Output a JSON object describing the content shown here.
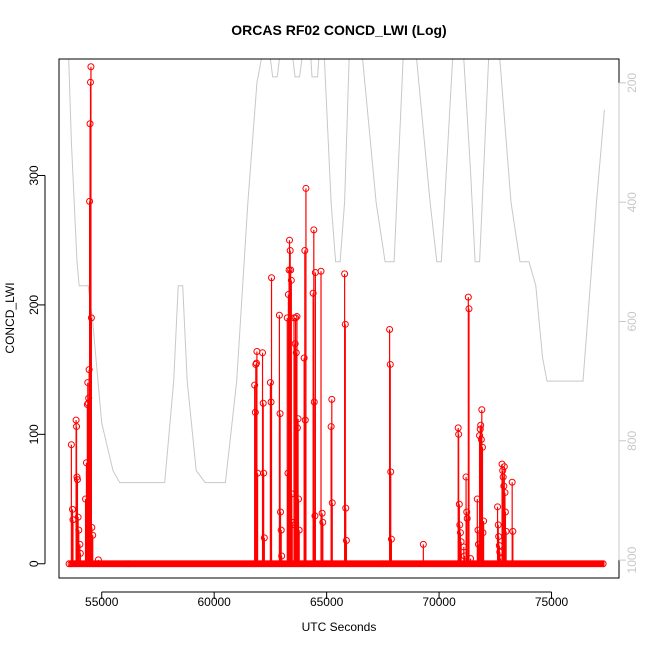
{
  "chart_data": {
    "type": "line",
    "title": "ORCAS RF02 CONCD_LWI (Log)",
    "xlabel": "UTC Seconds",
    "ylabel": "CONCD_LWI",
    "xlim": [
      53100,
      78000
    ],
    "ylim": [
      -11,
      390
    ],
    "x_ticks": [
      55000,
      60000,
      65000,
      70000,
      75000
    ],
    "y_ticks": [
      0,
      100,
      200,
      300
    ],
    "right_axis": {
      "ticks": [
        200,
        400,
        600,
        800,
        1000
      ],
      "reversed": true,
      "range": [
        160,
        1030
      ],
      "color": "#c8c8c8"
    },
    "baseline": {
      "x_start": 53550,
      "x_end": 77350,
      "y": 0
    },
    "series": [
      {
        "color": "#ff0000",
        "marker": "open-circle",
        "spikes": [
          [
            53650,
            92
          ],
          [
            53700,
            42
          ],
          [
            53720,
            34
          ],
          [
            53860,
            111
          ],
          [
            53880,
            106
          ],
          [
            53900,
            67
          ],
          [
            53920,
            65
          ],
          [
            53950,
            36
          ],
          [
            53980,
            26
          ],
          [
            54030,
            15
          ],
          [
            54050,
            8
          ],
          [
            54280,
            50
          ],
          [
            54320,
            78
          ],
          [
            54360,
            123
          ],
          [
            54380,
            140
          ],
          [
            54400,
            124
          ],
          [
            54420,
            128
          ],
          [
            54440,
            150
          ],
          [
            54460,
            280
          ],
          [
            54480,
            340
          ],
          [
            54500,
            372
          ],
          [
            54520,
            384
          ],
          [
            54540,
            190
          ],
          [
            54560,
            28
          ],
          [
            54600,
            22
          ],
          [
            54850,
            3
          ],
          [
            61800,
            138
          ],
          [
            61830,
            117
          ],
          [
            61850,
            154
          ],
          [
            61880,
            155
          ],
          [
            61900,
            164
          ],
          [
            61930,
            70
          ],
          [
            62150,
            163
          ],
          [
            62180,
            124
          ],
          [
            62200,
            70
          ],
          [
            62230,
            20
          ],
          [
            62500,
            140
          ],
          [
            62530,
            125
          ],
          [
            62550,
            221
          ],
          [
            62900,
            192
          ],
          [
            62930,
            116
          ],
          [
            62950,
            40
          ],
          [
            62980,
            26
          ],
          [
            63000,
            6
          ],
          [
            63250,
            190
          ],
          [
            63280,
            70
          ],
          [
            63300,
            208
          ],
          [
            63330,
            227
          ],
          [
            63350,
            250
          ],
          [
            63380,
            242
          ],
          [
            63400,
            227
          ],
          [
            63430,
            219
          ],
          [
            63450,
            54
          ],
          [
            63470,
            32
          ],
          [
            63550,
            190
          ],
          [
            63570,
            30
          ],
          [
            63600,
            170
          ],
          [
            63620,
            190
          ],
          [
            63650,
            163
          ],
          [
            63680,
            191
          ],
          [
            63700,
            105
          ],
          [
            63730,
            112
          ],
          [
            63750,
            50
          ],
          [
            63780,
            26
          ],
          [
            64000,
            159
          ],
          [
            64030,
            242
          ],
          [
            64050,
            111
          ],
          [
            64080,
            290
          ],
          [
            64400,
            209
          ],
          [
            64430,
            258
          ],
          [
            64450,
            125
          ],
          [
            64480,
            37
          ],
          [
            64500,
            225
          ],
          [
            64750,
            226
          ],
          [
            64800,
            39
          ],
          [
            64830,
            32
          ],
          [
            65200,
            106
          ],
          [
            65230,
            127
          ],
          [
            65250,
            47
          ],
          [
            65800,
            224
          ],
          [
            65830,
            185
          ],
          [
            65850,
            43
          ],
          [
            65880,
            18
          ],
          [
            67800,
            181
          ],
          [
            67830,
            154
          ],
          [
            67850,
            71
          ],
          [
            67880,
            19
          ],
          [
            69300,
            15
          ],
          [
            70850,
            105
          ],
          [
            70870,
            100
          ],
          [
            70900,
            46
          ],
          [
            70920,
            30
          ],
          [
            70950,
            24
          ],
          [
            70980,
            17
          ],
          [
            71100,
            13
          ],
          [
            71130,
            6
          ],
          [
            71200,
            67
          ],
          [
            71230,
            40
          ],
          [
            71250,
            35
          ],
          [
            71300,
            206
          ],
          [
            71330,
            197
          ],
          [
            71400,
            4
          ],
          [
            71700,
            50
          ],
          [
            71730,
            26
          ],
          [
            71750,
            15
          ],
          [
            71800,
            99
          ],
          [
            71830,
            104
          ],
          [
            71850,
            107
          ],
          [
            71880,
            96
          ],
          [
            71900,
            119
          ],
          [
            71930,
            90
          ],
          [
            71950,
            24
          ],
          [
            71980,
            33
          ],
          [
            72600,
            44
          ],
          [
            72630,
            30
          ],
          [
            72650,
            21
          ],
          [
            72680,
            14
          ],
          [
            72700,
            9
          ],
          [
            72730,
            4
          ],
          [
            72800,
            77
          ],
          [
            72830,
            72
          ],
          [
            72850,
            67
          ],
          [
            72880,
            60
          ],
          [
            72900,
            75
          ],
          [
            72930,
            55
          ],
          [
            72950,
            40
          ],
          [
            72980,
            25
          ],
          [
            73250,
            63
          ],
          [
            73280,
            25
          ]
        ]
      },
      {
        "color": "#c8c8c8",
        "axis": "right",
        "points": [
          [
            53500,
            160
          ],
          [
            53530,
            160
          ],
          [
            53650,
            300
          ],
          [
            53900,
            500
          ],
          [
            54000,
            540
          ],
          [
            54400,
            540
          ],
          [
            54600,
            600
          ],
          [
            55000,
            770
          ],
          [
            55500,
            850
          ],
          [
            55800,
            870
          ],
          [
            57800,
            870
          ],
          [
            58200,
            700
          ],
          [
            58400,
            540
          ],
          [
            58600,
            540
          ],
          [
            58800,
            700
          ],
          [
            59200,
            850
          ],
          [
            59600,
            870
          ],
          [
            60500,
            870
          ],
          [
            61000,
            700
          ],
          [
            61500,
            400
          ],
          [
            61900,
            200
          ],
          [
            62100,
            160
          ],
          [
            62500,
            160
          ],
          [
            62600,
            190
          ],
          [
            62800,
            190
          ],
          [
            62900,
            160
          ],
          [
            63500,
            160
          ],
          [
            63600,
            190
          ],
          [
            63800,
            190
          ],
          [
            63900,
            160
          ],
          [
            64300,
            160
          ],
          [
            64350,
            190
          ],
          [
            64600,
            190
          ],
          [
            64650,
            160
          ],
          [
            64900,
            160
          ],
          [
            65200,
            400
          ],
          [
            65400,
            500
          ],
          [
            65600,
            500
          ],
          [
            65800,
            400
          ],
          [
            66000,
            160
          ],
          [
            66600,
            160
          ],
          [
            67200,
            400
          ],
          [
            67600,
            500
          ],
          [
            68000,
            500
          ],
          [
            68400,
            160
          ],
          [
            69000,
            160
          ],
          [
            69600,
            400
          ],
          [
            69900,
            500
          ],
          [
            70100,
            500
          ],
          [
            70600,
            160
          ],
          [
            71100,
            160
          ],
          [
            71400,
            350
          ],
          [
            71600,
            500
          ],
          [
            71800,
            500
          ],
          [
            72200,
            160
          ],
          [
            72700,
            160
          ],
          [
            73200,
            400
          ],
          [
            73600,
            500
          ],
          [
            74000,
            500
          ],
          [
            74300,
            540
          ],
          [
            74600,
            660
          ],
          [
            74800,
            700
          ],
          [
            76400,
            700
          ],
          [
            76700,
            550
          ],
          [
            77000,
            400
          ],
          [
            77350,
            245
          ]
        ]
      }
    ],
    "grid": false,
    "legend": "none"
  }
}
